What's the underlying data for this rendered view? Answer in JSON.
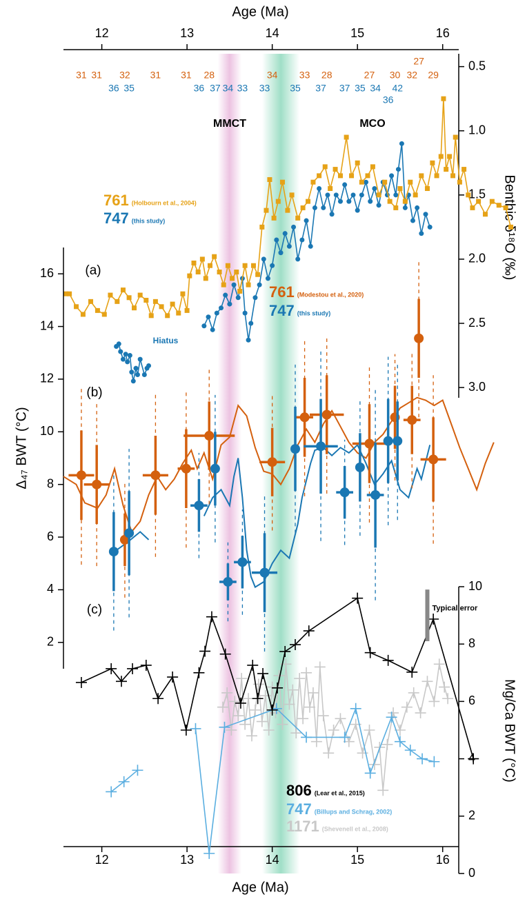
{
  "chart_data": [
    {
      "type": "line",
      "panel_label": "(a)",
      "x_label": "Age (Ma)",
      "y_label": "Benthic δ¹⁸O (‰)",
      "xlim": [
        11.55,
        16.82
      ],
      "xticks": [
        12,
        13,
        14,
        15,
        16
      ],
      "ylim": [
        3.08,
        0.4
      ],
      "yticks": [
        0.5,
        {
          "value": 1.0,
          "label": "1.0"
        },
        1.5,
        {
          "value": 2.0,
          "label": "2.0"
        },
        2.5,
        {
          "value": 3.0,
          "label": "3.0"
        }
      ],
      "bands": [
        {
          "color": "#e9b8dc",
          "range": [
            13.36,
            13.64
          ]
        },
        {
          "color": "#8fd9bd",
          "range": [
            13.88,
            14.32
          ]
        }
      ],
      "annotations": [
        {
          "text": "MMCT"
        },
        {
          "text": "MCO"
        },
        {
          "text": "Hiatus"
        }
      ],
      "series": [
        {
          "name": "761",
          "source": "(Holbourn et al., 2004)",
          "color": "#e6a217",
          "marker": "square",
          "x": [
            11.58,
            11.62,
            11.7,
            11.78,
            11.87,
            11.95,
            12.03,
            12.1,
            12.18,
            12.25,
            12.32,
            12.38,
            12.45,
            12.52,
            12.58,
            12.63,
            12.7,
            12.77,
            12.83,
            12.9,
            12.95,
            13.0,
            13.03,
            13.08,
            13.13,
            13.18,
            13.22,
            13.27,
            13.32,
            13.38,
            13.43,
            13.48,
            13.53,
            13.58,
            13.62,
            13.68,
            13.72,
            13.78,
            13.83,
            13.88,
            13.93,
            13.97,
            14.02,
            14.07,
            14.12,
            14.18,
            14.23,
            14.3,
            14.36,
            14.42,
            14.48,
            14.55,
            14.62,
            14.68,
            14.74,
            14.8,
            14.87,
            14.93,
            15.0,
            15.05,
            15.12,
            15.18,
            15.25,
            15.32,
            15.38,
            15.45,
            15.5,
            15.56,
            15.62,
            15.68,
            15.75,
            15.82,
            15.88,
            15.93,
            15.98,
            16.01,
            16.04,
            16.08,
            16.12,
            16.15,
            16.2,
            16.25,
            16.3,
            16.35,
            16.42,
            16.5,
            16.58,
            16.66,
            16.74,
            16.8
          ],
          "values": [
            2.27,
            2.27,
            2.37,
            2.43,
            2.33,
            2.4,
            2.43,
            2.28,
            2.33,
            2.24,
            2.3,
            2.38,
            2.28,
            2.32,
            2.44,
            2.33,
            2.37,
            2.44,
            2.35,
            2.42,
            2.27,
            2.4,
            2.13,
            2.03,
            2.1,
            2.0,
            2.15,
            2.05,
            1.98,
            2.1,
            2.2,
            2.05,
            2.15,
            2.1,
            2.25,
            2.05,
            2.2,
            2.05,
            2.12,
            1.75,
            1.62,
            1.38,
            1.68,
            1.55,
            1.4,
            1.62,
            1.5,
            1.68,
            1.6,
            1.55,
            1.4,
            1.35,
            1.28,
            1.45,
            1.3,
            1.35,
            1.05,
            1.35,
            1.25,
            1.4,
            1.35,
            1.28,
            1.5,
            1.4,
            1.55,
            1.6,
            1.45,
            1.55,
            1.4,
            1.5,
            1.35,
            1.45,
            1.25,
            1.35,
            1.2,
            0.75,
            1.3,
            1.2,
            1.35,
            1.05,
            1.4,
            1.3,
            1.5,
            1.6,
            1.55,
            1.65,
            1.55,
            1.58,
            1.6,
            1.75
          ]
        },
        {
          "name": "747",
          "source": "(this study)",
          "color": "#1a77b3",
          "marker": "circle",
          "x": [
            12.17,
            12.2,
            12.22,
            12.25,
            12.28,
            12.3,
            12.33,
            12.35,
            12.37,
            12.4,
            12.42,
            12.45,
            12.5,
            12.53,
            12.55,
            null,
            13.2,
            13.25,
            13.3,
            13.35,
            13.4,
            13.45,
            13.5,
            13.55,
            13.6,
            13.65,
            13.68,
            13.72,
            13.75,
            13.8,
            13.85,
            13.9,
            13.95,
            14.0,
            14.05,
            14.1,
            14.15,
            14.2,
            14.25,
            14.3,
            14.35,
            14.4,
            14.45,
            14.5,
            14.55,
            14.6,
            14.65,
            14.7,
            14.75,
            14.8,
            14.85,
            14.9,
            14.95,
            15.0,
            15.05,
            15.1,
            15.15,
            15.2,
            15.25,
            15.3,
            15.35,
            15.4,
            15.45,
            15.48,
            15.52,
            15.56,
            15.6,
            15.65,
            15.7,
            15.75,
            15.8,
            15.85
          ],
          "values": [
            2.68,
            2.66,
            2.72,
            2.78,
            2.74,
            2.8,
            2.75,
            2.88,
            2.95,
            2.85,
            2.9,
            2.78,
            2.9,
            2.85,
            2.83,
            null,
            2.52,
            2.45,
            2.55,
            2.42,
            2.38,
            2.28,
            2.35,
            2.2,
            2.3,
            2.15,
            2.42,
            2.63,
            2.5,
            2.3,
            2.2,
            2.0,
            2.15,
            2.05,
            1.85,
            1.95,
            1.8,
            1.9,
            1.75,
            2.0,
            1.85,
            1.7,
            1.9,
            1.6,
            1.45,
            1.6,
            1.5,
            1.65,
            1.5,
            1.55,
            1.42,
            1.55,
            1.5,
            1.62,
            1.5,
            1.4,
            1.55,
            1.45,
            1.58,
            1.4,
            1.5,
            1.35,
            1.5,
            1.3,
            1.1,
            1.6,
            1.5,
            1.7,
            1.6,
            1.8,
            1.65,
            1.75
          ]
        }
      ]
    },
    {
      "type": "errorbar",
      "panel_label": "(b)",
      "y_label": "Δ₄₇ BWT (°C)",
      "xlim": [
        11.55,
        16.82
      ],
      "ylim": [
        1,
        17
      ],
      "yticks": [
        2,
        4,
        6,
        8,
        10,
        12,
        14,
        16
      ],
      "series": [
        {
          "name": "761",
          "source": "(Modestou et al., 2020)",
          "color": "#d4600e",
          "x": [
            11.76,
            11.94,
            12.27,
            12.63,
            12.99,
            13.26,
            14.0,
            14.38,
            14.64,
            15.14,
            15.44,
            15.64,
            15.72,
            15.89
          ],
          "values": [
            8.35,
            8.0,
            5.9,
            8.35,
            8.6,
            9.85,
            8.85,
            10.55,
            10.65,
            9.55,
            10.55,
            10.45,
            13.55,
            8.95
          ],
          "x_err": [
            0.15,
            0.15,
            0.05,
            0.15,
            0.1,
            0.3,
            0.15,
            0.1,
            0.2,
            0.2,
            0.05,
            0.1,
            0.05,
            0.15
          ],
          "y_err": [
            1.7,
            1.5,
            1.0,
            1.5,
            1.5,
            1.3,
            1.3,
            1.5,
            1.5,
            1.5,
            1.2,
            1.3,
            1.5,
            1.6
          ],
          "y_err_outer": [
            3.4,
            3.1,
            2.2,
            3.1,
            3.0,
            2.6,
            2.6,
            3.0,
            3.0,
            3.0,
            2.4,
            2.6,
            3.0,
            3.2
          ],
          "n_labels": [
            "31",
            "31",
            "32",
            "31",
            "31",
            "28",
            "34",
            "33",
            "28",
            "27",
            "30",
            "32",
            "27",
            "29"
          ],
          "line_x": [
            11.55,
            11.7,
            11.8,
            11.95,
            12.05,
            12.15,
            12.25,
            12.35,
            12.45,
            12.55,
            12.65,
            12.75,
            12.85,
            12.95,
            13.05,
            13.12,
            13.2,
            13.3,
            13.4,
            13.5,
            13.6,
            13.7,
            13.8,
            13.9,
            14.0,
            14.1,
            14.2,
            14.3,
            14.4,
            14.5,
            14.6,
            14.7,
            14.8,
            14.9,
            15.0,
            15.1,
            15.2,
            15.3,
            15.4,
            15.5,
            15.6,
            15.7,
            15.8,
            15.9,
            16.0,
            16.1,
            16.2,
            16.3,
            16.4,
            16.5,
            16.6
          ],
          "line_values": [
            8.3,
            8.0,
            7.3,
            7.1,
            7.6,
            8.6,
            7.2,
            6.2,
            6.6,
            7.6,
            8.3,
            7.8,
            8.2,
            8.8,
            9.3,
            8.6,
            9.2,
            8.2,
            9.5,
            9.8,
            11.0,
            10.6,
            9.4,
            8.5,
            8.4,
            8.0,
            8.6,
            9.5,
            10.1,
            9.6,
            10.3,
            10.8,
            10.2,
            9.6,
            9.2,
            9.0,
            9.6,
            9.9,
            10.4,
            10.9,
            11.1,
            11.3,
            11.2,
            11.0,
            11.2,
            10.3,
            9.4,
            8.6,
            7.8,
            8.8,
            9.6
          ]
        },
        {
          "name": "747",
          "source": "(this study)",
          "color": "#1a77b3",
          "x": [
            12.14,
            12.32,
            13.14,
            13.33,
            13.48,
            13.65,
            13.91,
            14.27,
            14.57,
            14.85,
            15.03,
            15.21,
            15.36,
            15.47
          ],
          "values": [
            5.45,
            6.15,
            7.2,
            8.6,
            4.3,
            5.05,
            4.65,
            9.35,
            9.45,
            7.7,
            8.65,
            7.6,
            9.65,
            9.65
          ],
          "x_err": [
            0.05,
            0.05,
            0.1,
            0.05,
            0.1,
            0.1,
            0.15,
            0.05,
            0.2,
            0.1,
            0.05,
            0.1,
            0.05,
            0.05
          ],
          "y_err": [
            1.5,
            1.6,
            1.0,
            1.4,
            0.7,
            1.0,
            1.5,
            1.6,
            1.8,
            1.0,
            1.3,
            2.0,
            1.6,
            1.5
          ],
          "y_err_outer": [
            3.0,
            3.2,
            2.0,
            2.8,
            1.5,
            2.0,
            3.0,
            3.2,
            3.6,
            2.0,
            2.6,
            4.0,
            3.2,
            3.0
          ],
          "n_labels": [
            "36",
            "35",
            "36",
            "37",
            "34",
            "33",
            "33",
            "35",
            "37",
            "37",
            "35",
            "34",
            "36",
            "42"
          ],
          "line_x": [
            12.17,
            12.3,
            12.45,
            12.55,
            null,
            13.2,
            13.3,
            13.4,
            13.5,
            13.55,
            13.6,
            13.65,
            13.7,
            13.75,
            13.8,
            13.9,
            14.0,
            14.1,
            14.2,
            14.3,
            14.35,
            14.45,
            14.5,
            14.6,
            14.7,
            14.8,
            14.9,
            15.0,
            15.1,
            15.2,
            15.3,
            15.4,
            15.5,
            15.6,
            15.7,
            15.75,
            15.85
          ],
          "line_values": [
            5.5,
            5.8,
            6.2,
            5.9,
            null,
            6.8,
            7.5,
            7.8,
            7.2,
            8.3,
            9.0,
            7.5,
            5.5,
            4.5,
            4.1,
            4.3,
            5.0,
            5.5,
            5.2,
            6.5,
            7.5,
            8.8,
            9.3,
            9.4,
            9.1,
            9.4,
            9.2,
            9.5,
            8.8,
            8.0,
            8.4,
            8.9,
            7.8,
            7.5,
            8.6,
            8.2,
            9.5
          ]
        }
      ]
    },
    {
      "type": "line",
      "panel_label": "(c)",
      "x_label": "Age (Ma)",
      "y_label": "Mg/Ca BWT (°C)",
      "xlim": [
        11.55,
        16.82
      ],
      "xticks": [
        12,
        13,
        14,
        15,
        16
      ],
      "ylim": [
        0,
        10
      ],
      "yticks": [
        0,
        2,
        4,
        6,
        8,
        10
      ],
      "typical_error": {
        "label": "Typical error",
        "x": 15.82,
        "range": [
          8.1,
          9.9
        ]
      },
      "series": [
        {
          "name": "806",
          "source": "(Lear et al., 2015)",
          "color": "#000000",
          "marker": "cross",
          "x": [
            11.76,
            12.11,
            12.23,
            12.36,
            12.52,
            12.66,
            12.83,
            12.99,
            13.14,
            13.21,
            13.29,
            13.45,
            13.63,
            13.77,
            13.83,
            13.89,
            14.0,
            14.06,
            14.15,
            14.27,
            14.43,
            15.0,
            15.15,
            15.36,
            15.64,
            15.89,
            16.36
          ],
          "values": [
            6.66,
            7.14,
            6.7,
            7.14,
            7.26,
            6.1,
            6.85,
            5.0,
            7.0,
            7.75,
            8.95,
            7.65,
            5.94,
            7.26,
            6.1,
            6.97,
            5.7,
            6.47,
            7.74,
            7.98,
            8.46,
            9.6,
            7.7,
            7.43,
            7.02,
            8.87,
            4.0
          ]
        },
        {
          "name": "747",
          "source": "(Billups and Schrag, 2002)",
          "color": "#5aaee0",
          "marker": "cross",
          "x": [
            12.11,
            12.26,
            12.42,
            null,
            13.1,
            13.26,
            13.44,
            14.05,
            14.4,
            14.85,
            14.98,
            15.15,
            15.4,
            15.5,
            15.62,
            15.76,
            15.9
          ],
          "values": [
            2.85,
            3.2,
            3.6,
            null,
            5.05,
            0.7,
            5.1,
            5.75,
            4.75,
            4.75,
            5.75,
            3.5,
            5.45,
            4.6,
            4.3,
            4.0,
            3.9
          ]
        },
        {
          "name": "1171",
          "source": "(Shevenell et al., 2008)",
          "color": "#c8c8c8",
          "marker": "cross",
          "x": [
            13.42,
            13.47,
            13.52,
            13.56,
            13.6,
            13.64,
            13.68,
            13.72,
            13.76,
            13.8,
            13.84,
            13.88,
            13.92,
            13.96,
            14.0,
            14.04,
            14.08,
            14.12,
            14.16,
            14.2,
            14.24,
            14.28,
            14.32,
            14.36,
            14.4,
            14.44,
            14.48,
            14.52,
            14.56,
            14.6,
            14.66,
            14.72,
            14.8,
            14.9,
            14.98,
            15.06,
            15.14,
            15.2,
            15.26,
            15.3,
            15.35,
            15.42,
            15.5,
            15.58,
            15.66,
            15.74,
            15.82,
            15.9,
            15.96,
            16.02,
            16.06
          ],
          "values": [
            5.8,
            6.3,
            5.0,
            6.0,
            5.5,
            6.8,
            5.2,
            6.1,
            4.8,
            5.7,
            6.6,
            5.3,
            6.2,
            5.0,
            6.5,
            5.6,
            6.9,
            5.2,
            7.3,
            5.9,
            6.4,
            4.9,
            6.8,
            5.4,
            7.0,
            5.8,
            6.3,
            4.6,
            7.2,
            5.5,
            4.2,
            5.0,
            5.4,
            4.6,
            5.2,
            4.2,
            5.0,
            3.8,
            4.4,
            2.9,
            4.5,
            5.6,
            5.0,
            5.8,
            6.3,
            5.6,
            6.7,
            6.0,
            7.3,
            6.5,
            6.1
          ]
        }
      ]
    }
  ]
}
